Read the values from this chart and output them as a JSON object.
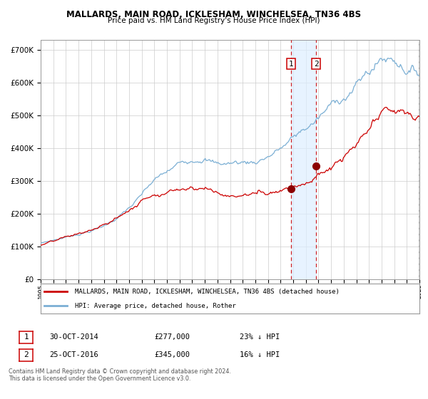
{
  "title1": "MALLARDS, MAIN ROAD, ICKLESHAM, WINCHELSEA, TN36 4BS",
  "title2": "Price paid vs. HM Land Registry's House Price Index (HPI)",
  "legend_label1": "MALLARDS, MAIN ROAD, ICKLESHAM, WINCHELSEA, TN36 4BS (detached house)",
  "legend_label2": "HPI: Average price, detached house, Rother",
  "line1_color": "#cc0000",
  "line2_color": "#7bafd4",
  "marker_color": "#8b0000",
  "purchase1_date": 2014.83,
  "purchase1_price": 277000,
  "purchase2_date": 2016.82,
  "purchase2_price": 345000,
  "footnote1": "Contains HM Land Registry data © Crown copyright and database right 2024.",
  "footnote2": "This data is licensed under the Open Government Licence v3.0.",
  "ylim": [
    0,
    730000
  ],
  "yticks": [
    0,
    100000,
    200000,
    300000,
    400000,
    500000,
    600000,
    700000
  ],
  "start_year": 1995,
  "end_year": 2025,
  "background_color": "#ffffff",
  "grid_color": "#cccccc"
}
